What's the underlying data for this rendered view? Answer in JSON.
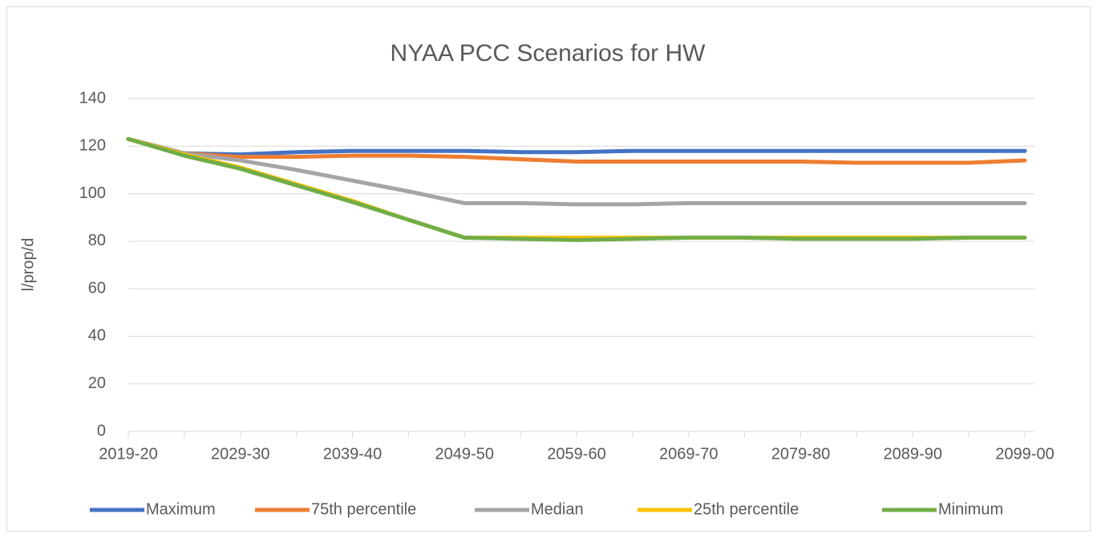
{
  "chart_data": {
    "type": "line",
    "title": "NYAA PCC Scenarios for HW",
    "y_label": "l/prop/d",
    "categories": [
      "2019-20",
      null,
      "2029-30",
      null,
      "2039-40",
      null,
      "2049-50",
      null,
      "2059-60",
      null,
      "2069-70",
      null,
      "2079-80",
      null,
      "2089-90",
      null,
      "2099-00"
    ],
    "series": [
      {
        "name": "Maximum",
        "color": "#4472c4",
        "values": [
          123,
          117,
          116.5,
          117.5,
          118,
          118,
          118,
          117.5,
          117.5,
          118,
          118,
          118,
          118,
          118,
          118,
          118,
          118
        ]
      },
      {
        "name": "75th percentile",
        "color": "#ed7d31",
        "values": [
          123,
          117,
          115.5,
          115.5,
          116,
          116,
          115.5,
          114.5,
          113.5,
          113.5,
          113.5,
          113.5,
          113.5,
          113,
          113,
          113,
          114
        ]
      },
      {
        "name": "Median",
        "color": "#a5a5a5",
        "values": [
          123,
          117,
          114,
          110,
          105.5,
          101,
          96,
          96,
          95.5,
          95.5,
          96,
          96,
          96,
          96,
          96,
          96,
          96
        ]
      },
      {
        "name": "25th percentile",
        "color": "#ffc000",
        "values": [
          123,
          116.5,
          111,
          104,
          97,
          89,
          81.5,
          81.5,
          81.5,
          81.5,
          81.5,
          81.5,
          81.5,
          81.5,
          81.5,
          81.5,
          81.5
        ]
      },
      {
        "name": "Minimum",
        "color": "#70ad47",
        "values": [
          123,
          116,
          110.5,
          103.5,
          96.5,
          89,
          81.5,
          81,
          80.5,
          81,
          81.5,
          81.5,
          81,
          81,
          81,
          81.5,
          81.5
        ]
      }
    ],
    "ylim": [
      0,
      140
    ],
    "yticks": [
      0,
      20,
      40,
      60,
      80,
      100,
      120,
      140
    ],
    "grid": true,
    "legend": "bottom"
  }
}
